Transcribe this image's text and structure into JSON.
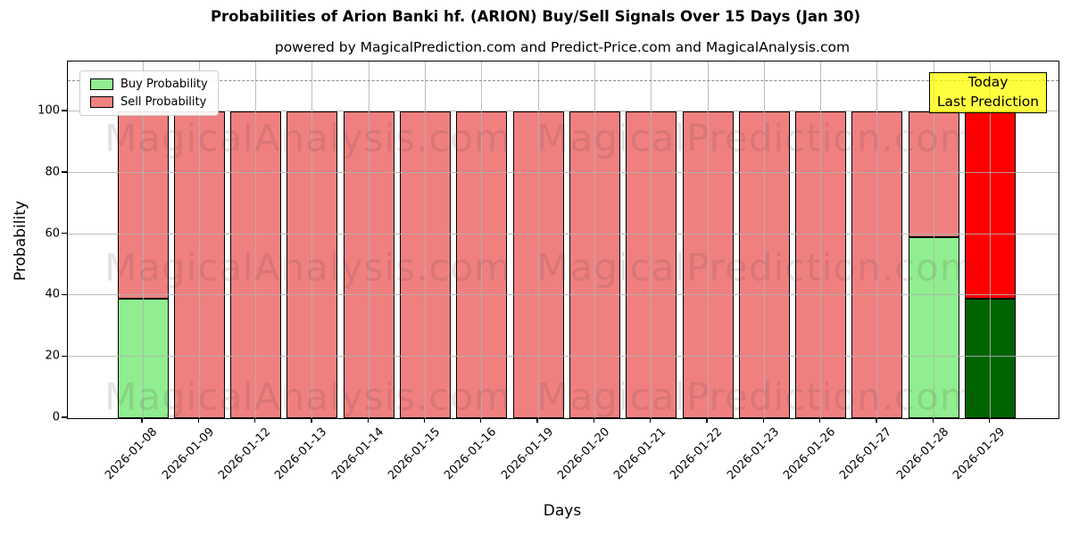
{
  "chart_data": {
    "type": "bar",
    "stacked": true,
    "title": "Probabilities of Arion Banki hf. (ARION) Buy/Sell Signals Over 15 Days (Jan 30)",
    "subtitle": "powered by MagicalPrediction.com and Predict-Price.com and MagicalAnalysis.com",
    "xlabel": "Days",
    "ylabel": "Probability",
    "ylim": [
      0,
      116.3
    ],
    "yticks": [
      0,
      20,
      40,
      60,
      80,
      100
    ],
    "dashed_line_y": 110,
    "grid": true,
    "legend_position": "upper-left",
    "categories": [
      "2026-01-08",
      "2026-01-09",
      "2026-01-12",
      "2026-01-13",
      "2026-01-14",
      "2026-01-15",
      "2026-01-16",
      "2026-01-19",
      "2026-01-20",
      "2026-01-21",
      "2026-01-22",
      "2026-01-23",
      "2026-01-26",
      "2026-01-27",
      "2026-01-28",
      "2026-01-29"
    ],
    "series": [
      {
        "name": "Buy Probability",
        "color": "#90EE90",
        "today_color": "#006400",
        "values": [
          39,
          0,
          0,
          0,
          0,
          0,
          0,
          0,
          0,
          0,
          0,
          0,
          0,
          0,
          59,
          39
        ]
      },
      {
        "name": "Sell Probability",
        "color": "#F08080",
        "today_color": "#FF0000",
        "values": [
          61,
          100,
          100,
          100,
          100,
          100,
          100,
          100,
          100,
          100,
          100,
          100,
          100,
          100,
          41,
          61
        ]
      }
    ],
    "today_index": 15,
    "annotation": {
      "line1": "Today",
      "line2": "Last Prediction",
      "bg_color": "#FFFF00"
    },
    "watermarks": {
      "left": "MagicalAnalysis.com",
      "right": "MagicalPrediction.com"
    }
  }
}
